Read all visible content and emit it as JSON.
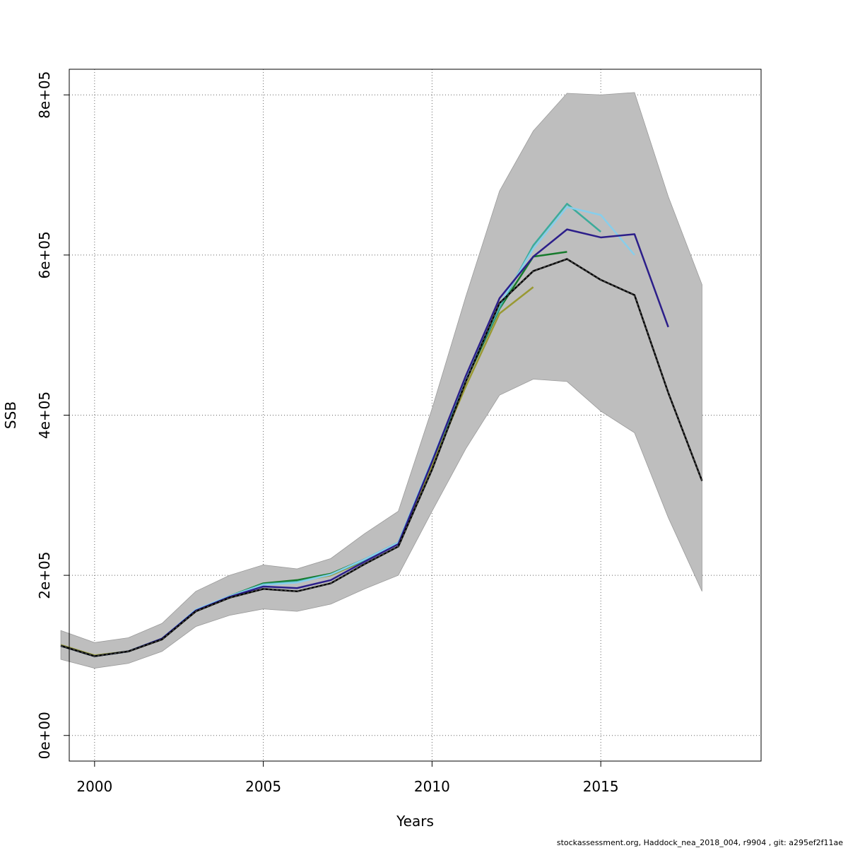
{
  "chart_data": {
    "type": "line",
    "xlabel": "Years",
    "ylabel": "SSB",
    "xlim": [
      1999.25,
      2019.75
    ],
    "ylim": [
      -32000,
      832000
    ],
    "xticks": [
      2000,
      2005,
      2010,
      2015
    ],
    "xtick_labels": [
      "2000",
      "2005",
      "2010",
      "2015"
    ],
    "yticks": [
      0,
      200000,
      400000,
      600000,
      800000
    ],
    "ytick_labels": [
      "0e+00",
      "2e+05",
      "4e+05",
      "6e+05",
      "8e+05"
    ],
    "grid": true,
    "footer": "stockassessment.org, Haddock_nea_2018_004, r9904 , git: a295ef2f11ae",
    "confidence_band": {
      "color": "#bebebe",
      "x": [
        1999,
        2000,
        2001,
        2002,
        2003,
        2004,
        2005,
        2006,
        2007,
        2008,
        2009,
        2010,
        2011,
        2012,
        2013,
        2014,
        2015,
        2016,
        2017,
        2018
      ],
      "lower": [
        95000,
        84000,
        90000,
        105000,
        136000,
        150000,
        158000,
        155000,
        164000,
        183000,
        200000,
        280000,
        358000,
        425000,
        445000,
        442000,
        405000,
        378000,
        272000,
        180000
      ],
      "upper": [
        131000,
        116000,
        122000,
        140000,
        180000,
        200000,
        213000,
        208000,
        221000,
        252000,
        280000,
        408000,
        548000,
        680000,
        755000,
        802000,
        800000,
        803000,
        673000,
        563000
      ]
    },
    "series": [
      {
        "color": "#000000",
        "dashed_overlay": true,
        "x": [
          1999,
          2000,
          2001,
          2002,
          2003,
          2004,
          2005,
          2006,
          2007,
          2008,
          2009,
          2010,
          2011,
          2012,
          2013,
          2014,
          2015,
          2016,
          2017,
          2018
        ],
        "values": [
          112000,
          99000,
          105000,
          120000,
          155000,
          172000,
          183000,
          180000,
          190000,
          214000,
          236000,
          332000,
          442000,
          540000,
          580000,
          595000,
          569000,
          550000,
          428000,
          318000
        ]
      },
      {
        "color": "#2c1e8a",
        "x": [
          1999,
          2000,
          2001,
          2002,
          2003,
          2004,
          2005,
          2006,
          2007,
          2008,
          2009,
          2010,
          2011,
          2012,
          2013,
          2014,
          2015,
          2016,
          2017
        ],
        "values": [
          112000,
          99000,
          105000,
          121000,
          156000,
          173000,
          186000,
          184000,
          194000,
          217000,
          239000,
          342000,
          449000,
          546000,
          598000,
          632000,
          622000,
          626000,
          510000
        ]
      },
      {
        "color": "#87ceeb",
        "x": [
          1999,
          2000,
          2001,
          2002,
          2003,
          2004,
          2005,
          2006,
          2007,
          2008,
          2009,
          2010,
          2011,
          2012,
          2013,
          2014,
          2015,
          2016
        ],
        "values": [
          112000,
          99000,
          105000,
          121000,
          157000,
          174000,
          188000,
          191000,
          201000,
          220000,
          241000,
          344000,
          447000,
          538000,
          608000,
          660000,
          650000,
          600000
        ]
      },
      {
        "color": "#3cab9a",
        "x": [
          1999,
          2000,
          2001,
          2002,
          2003,
          2004,
          2005,
          2006,
          2007,
          2008,
          2009,
          2010,
          2011,
          2012,
          2013,
          2014,
          2015
        ],
        "values": [
          112000,
          99000,
          105000,
          121000,
          156000,
          174000,
          189000,
          192000,
          201000,
          219000,
          240000,
          342000,
          446000,
          534000,
          612000,
          664000,
          629000
        ]
      },
      {
        "color": "#167a2c",
        "x": [
          1999,
          2000,
          2001,
          2002,
          2003,
          2004,
          2005,
          2006,
          2007,
          2008,
          2009,
          2010,
          2011,
          2012,
          2013,
          2014
        ],
        "values": [
          112000,
          99000,
          105000,
          121000,
          156000,
          174000,
          190000,
          194000,
          202000,
          220000,
          241000,
          343000,
          443000,
          533000,
          598000,
          604000
        ]
      },
      {
        "color": "#999933",
        "x": [
          1999,
          2000,
          2001,
          2002,
          2003,
          2004,
          2005,
          2006,
          2007,
          2008,
          2009,
          2010,
          2011,
          2012,
          2013
        ],
        "values": [
          113000,
          100000,
          105000,
          121000,
          155000,
          173000,
          188000,
          192000,
          200000,
          218000,
          239000,
          338000,
          436000,
          527000,
          560000
        ]
      }
    ]
  }
}
